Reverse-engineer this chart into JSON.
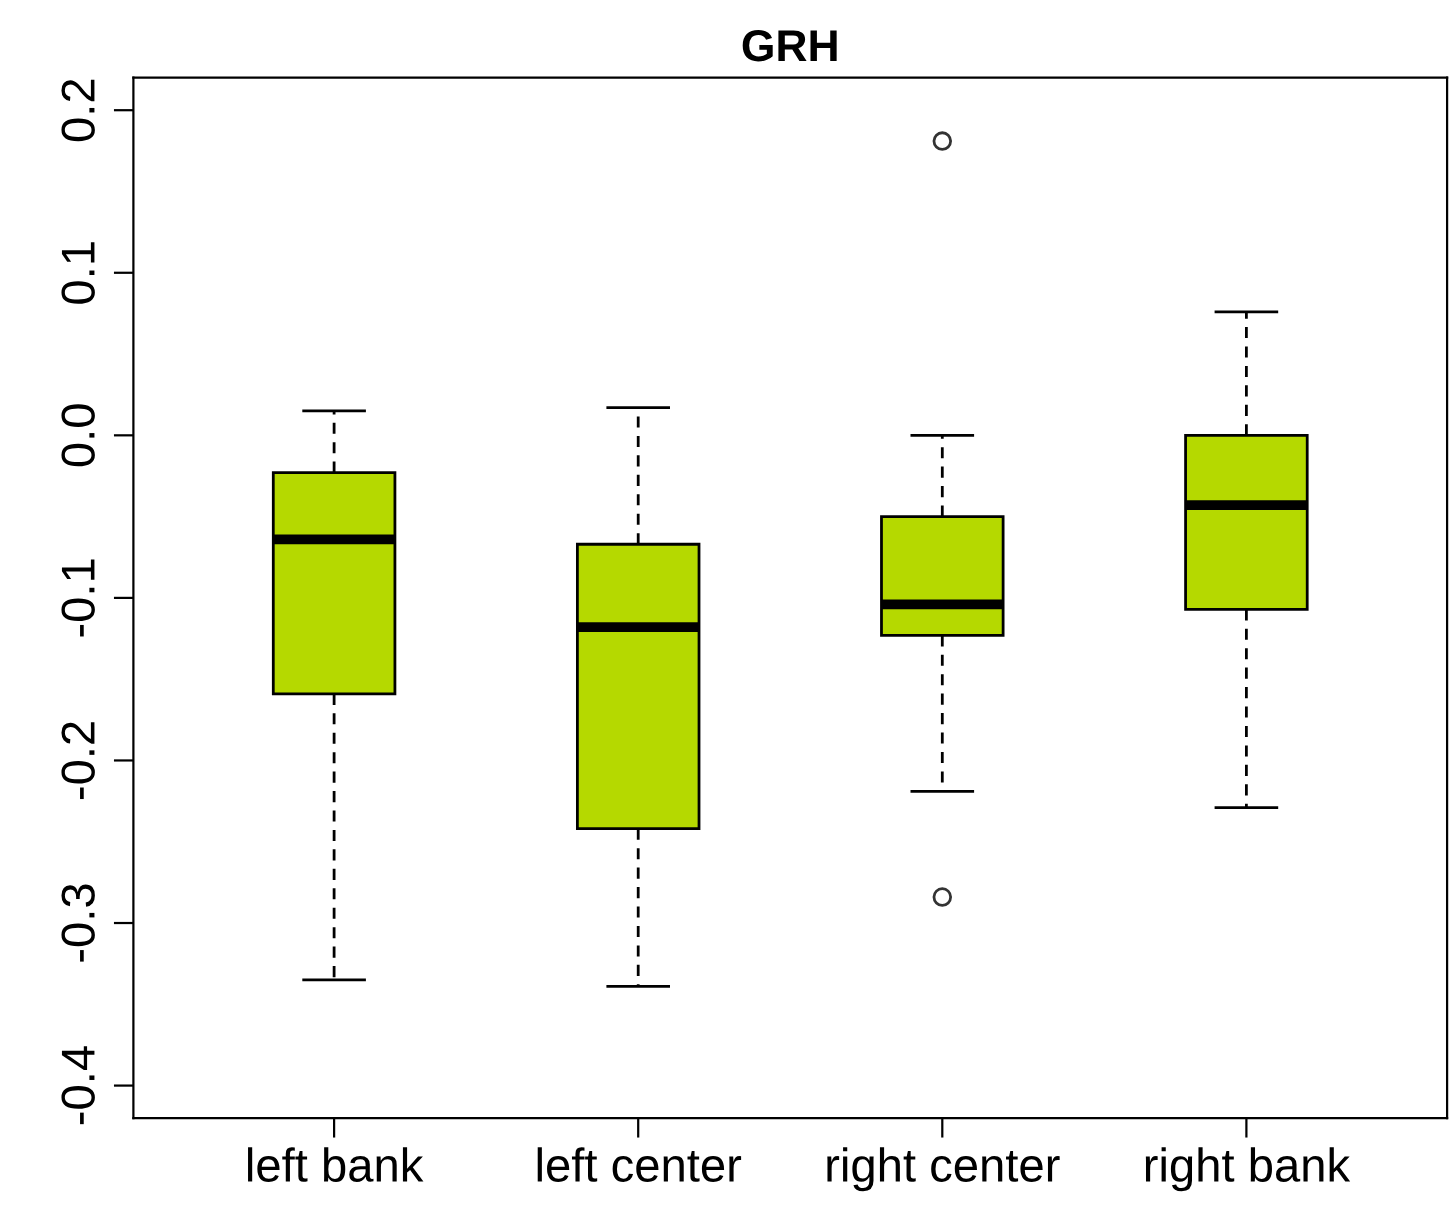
{
  "chart_data": {
    "type": "box",
    "title": "GRH",
    "categories": [
      "left bank",
      "left center",
      "right center",
      "right bank"
    ],
    "color": "#b5d900",
    "boxes": [
      {
        "low": -0.335,
        "q1": -0.159,
        "median": -0.064,
        "q3": -0.023,
        "high": 0.015
      },
      {
        "low": -0.339,
        "q1": -0.242,
        "median": -0.118,
        "q3": -0.067,
        "high": 0.017
      },
      {
        "low": -0.219,
        "q1": -0.123,
        "median": -0.104,
        "q3": -0.05,
        "high": 0.0,
        "outliers": [
          0.181,
          -0.284
        ]
      },
      {
        "low": -0.229,
        "q1": -0.107,
        "median": -0.043,
        "q3": 0.0,
        "high": 0.076
      }
    ],
    "ylim": [
      -0.42,
      0.22
    ],
    "yticks": [
      -0.4,
      -0.3,
      -0.2,
      -0.1,
      {
        "value": 0,
        "label": "0.0"
      },
      0.1,
      0.2
    ],
    "grid": false
  }
}
